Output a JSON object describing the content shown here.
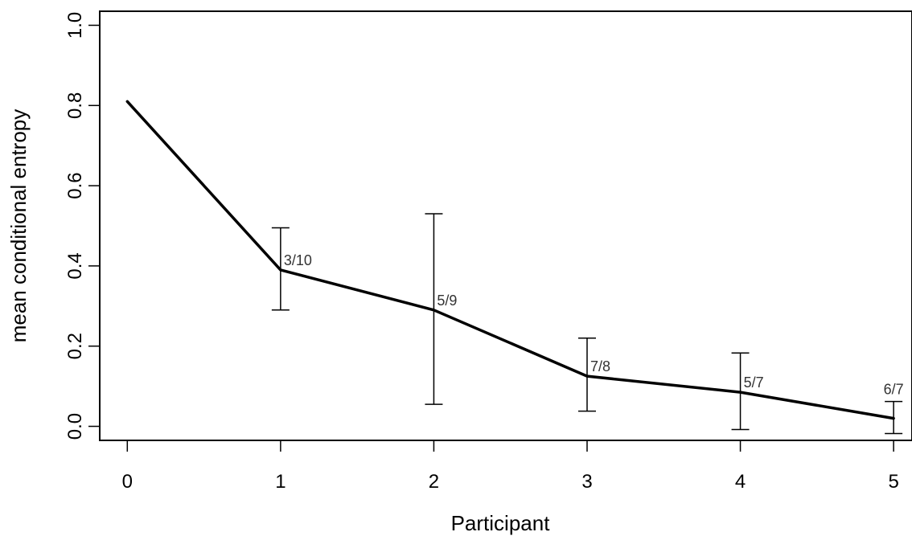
{
  "chart_data": {
    "type": "line",
    "title": "",
    "xlabel": "Participant",
    "ylabel": "mean conditional entropy",
    "xlim": [
      -0.18,
      5.12
    ],
    "ylim": [
      -0.035,
      1.035
    ],
    "x_ticks": [
      0,
      1,
      2,
      3,
      4,
      5
    ],
    "x_tick_labels": [
      "0",
      "1",
      "2",
      "3",
      "4",
      "5"
    ],
    "y_ticks": [
      0.0,
      0.2,
      0.4,
      0.6,
      0.8,
      1.0
    ],
    "y_tick_labels": [
      "0.0",
      "0.2",
      "0.4",
      "0.6",
      "0.8",
      "1.0"
    ],
    "grid": false,
    "legend": "none",
    "series": [
      {
        "x": [
          0,
          1,
          2,
          3,
          4,
          5
        ],
        "y": [
          0.81,
          0.39,
          0.29,
          0.125,
          0.085,
          0.02
        ],
        "error_low": [
          null,
          0.29,
          0.055,
          0.038,
          -0.008,
          -0.018
        ],
        "error_high": [
          null,
          0.495,
          0.53,
          0.22,
          0.183,
          0.062
        ],
        "labels": [
          "",
          "3/10",
          "5/9",
          "7/8",
          "5/7",
          "6/7"
        ],
        "color": "#000000"
      }
    ]
  }
}
